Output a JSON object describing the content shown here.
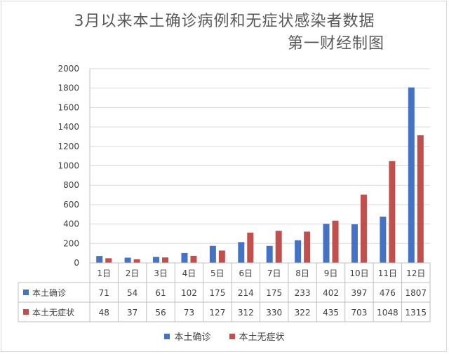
{
  "title_line1": "3月以来本土确诊病例和无症状感染者数据",
  "title_line2": "第一财经制图",
  "chart_data": {
    "type": "bar",
    "categories": [
      "1日",
      "2日",
      "3日",
      "4日",
      "5日",
      "6日",
      "7日",
      "8日",
      "9日",
      "10日",
      "11日",
      "12日"
    ],
    "series": [
      {
        "name": "本土确诊",
        "color": "#4472c4",
        "values": [
          71,
          54,
          61,
          102,
          175,
          214,
          175,
          233,
          402,
          397,
          476,
          1807
        ]
      },
      {
        "name": "本土无症状",
        "color": "#c0504d",
        "values": [
          48,
          37,
          56,
          73,
          127,
          312,
          330,
          322,
          435,
          703,
          1048,
          1315
        ]
      }
    ],
    "ylim": [
      0,
      2000
    ],
    "yticks": [
      0,
      200,
      400,
      600,
      800,
      1000,
      1200,
      1400,
      1600,
      1800,
      2000
    ],
    "grid": true,
    "data_table": true,
    "legend_position": "bottom"
  }
}
